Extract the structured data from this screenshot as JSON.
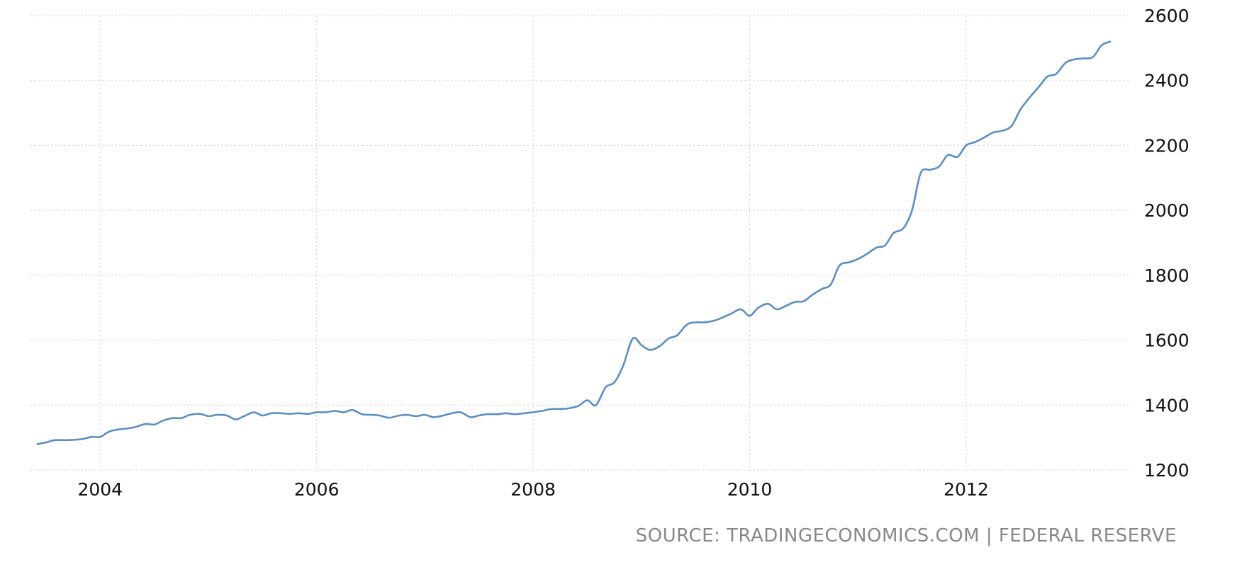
{
  "chart_data": {
    "type": "line",
    "title": "",
    "xlabel": "",
    "ylabel": "",
    "x_ticks": [
      "2004",
      "2006",
      "2008",
      "2010",
      "2012"
    ],
    "y_ticks": [
      1200,
      1400,
      1600,
      1800,
      2000,
      2200,
      2400,
      2600
    ],
    "xlim": [
      2003.35,
      2013.5
    ],
    "ylim": [
      1200,
      2600
    ],
    "grid": true,
    "legend": "none",
    "series_color": "#5b8fc2",
    "series": [
      {
        "x": [
          2003.42,
          2003.5,
          2003.58,
          2003.67,
          2003.75,
          2003.83,
          2003.92,
          2004.0,
          2004.08,
          2004.17,
          2004.25,
          2004.33,
          2004.42,
          2004.5,
          2004.58,
          2004.67,
          2004.75,
          2004.83,
          2004.92,
          2005.0,
          2005.08,
          2005.17,
          2005.25,
          2005.33,
          2005.42,
          2005.5,
          2005.58,
          2005.67,
          2005.75,
          2005.83,
          2005.92,
          2006.0,
          2006.08,
          2006.17,
          2006.25,
          2006.33,
          2006.42,
          2006.5,
          2006.58,
          2006.67,
          2006.75,
          2006.83,
          2006.92,
          2007.0,
          2007.08,
          2007.17,
          2007.25,
          2007.33,
          2007.42,
          2007.5,
          2007.58,
          2007.67,
          2007.75,
          2007.83,
          2007.92,
          2008.0,
          2008.08,
          2008.17,
          2008.25,
          2008.33,
          2008.42,
          2008.5,
          2008.58,
          2008.67,
          2008.75,
          2008.83,
          2008.92,
          2009.0,
          2009.08,
          2009.17,
          2009.25,
          2009.33,
          2009.42,
          2009.5,
          2009.58,
          2009.67,
          2009.75,
          2009.83,
          2009.92,
          2010.0,
          2010.08,
          2010.17,
          2010.25,
          2010.33,
          2010.42,
          2010.5,
          2010.58,
          2010.67,
          2010.75,
          2010.83,
          2010.92,
          2011.0,
          2011.08,
          2011.17,
          2011.25,
          2011.33,
          2011.42,
          2011.5,
          2011.58,
          2011.67,
          2011.75,
          2011.83,
          2011.92,
          2012.0,
          2012.08,
          2012.17,
          2012.25,
          2012.33,
          2012.42,
          2012.5,
          2012.58,
          2012.67,
          2012.75,
          2012.83,
          2012.92,
          2013.0,
          2013.08,
          2013.17,
          2013.25,
          2013.33
        ],
        "values": [
          1280,
          1285,
          1292,
          1292,
          1293,
          1295,
          1302,
          1302,
          1318,
          1325,
          1328,
          1333,
          1342,
          1340,
          1352,
          1360,
          1360,
          1370,
          1373,
          1366,
          1370,
          1368,
          1356,
          1366,
          1378,
          1368,
          1375,
          1375,
          1373,
          1375,
          1373,
          1378,
          1378,
          1382,
          1378,
          1385,
          1372,
          1370,
          1368,
          1361,
          1367,
          1370,
          1366,
          1370,
          1363,
          1368,
          1375,
          1378,
          1363,
          1368,
          1372,
          1372,
          1375,
          1372,
          1375,
          1378,
          1382,
          1388,
          1388,
          1390,
          1398,
          1415,
          1400,
          1455,
          1470,
          1520,
          1605,
          1585,
          1570,
          1582,
          1605,
          1615,
          1648,
          1655,
          1655,
          1660,
          1670,
          1682,
          1695,
          1675,
          1700,
          1712,
          1695,
          1705,
          1718,
          1720,
          1740,
          1758,
          1772,
          1830,
          1840,
          1850,
          1865,
          1885,
          1892,
          1930,
          1945,
          2000,
          2115,
          2125,
          2135,
          2170,
          2165,
          2200,
          2210,
          2225,
          2240,
          2245,
          2260,
          2310,
          2345,
          2380,
          2412,
          2420,
          2455,
          2465,
          2468,
          2472,
          2508,
          2520
        ]
      }
    ]
  },
  "source": "SOURCE: TRADINGECONOMICS.COM | FEDERAL RESERVE"
}
